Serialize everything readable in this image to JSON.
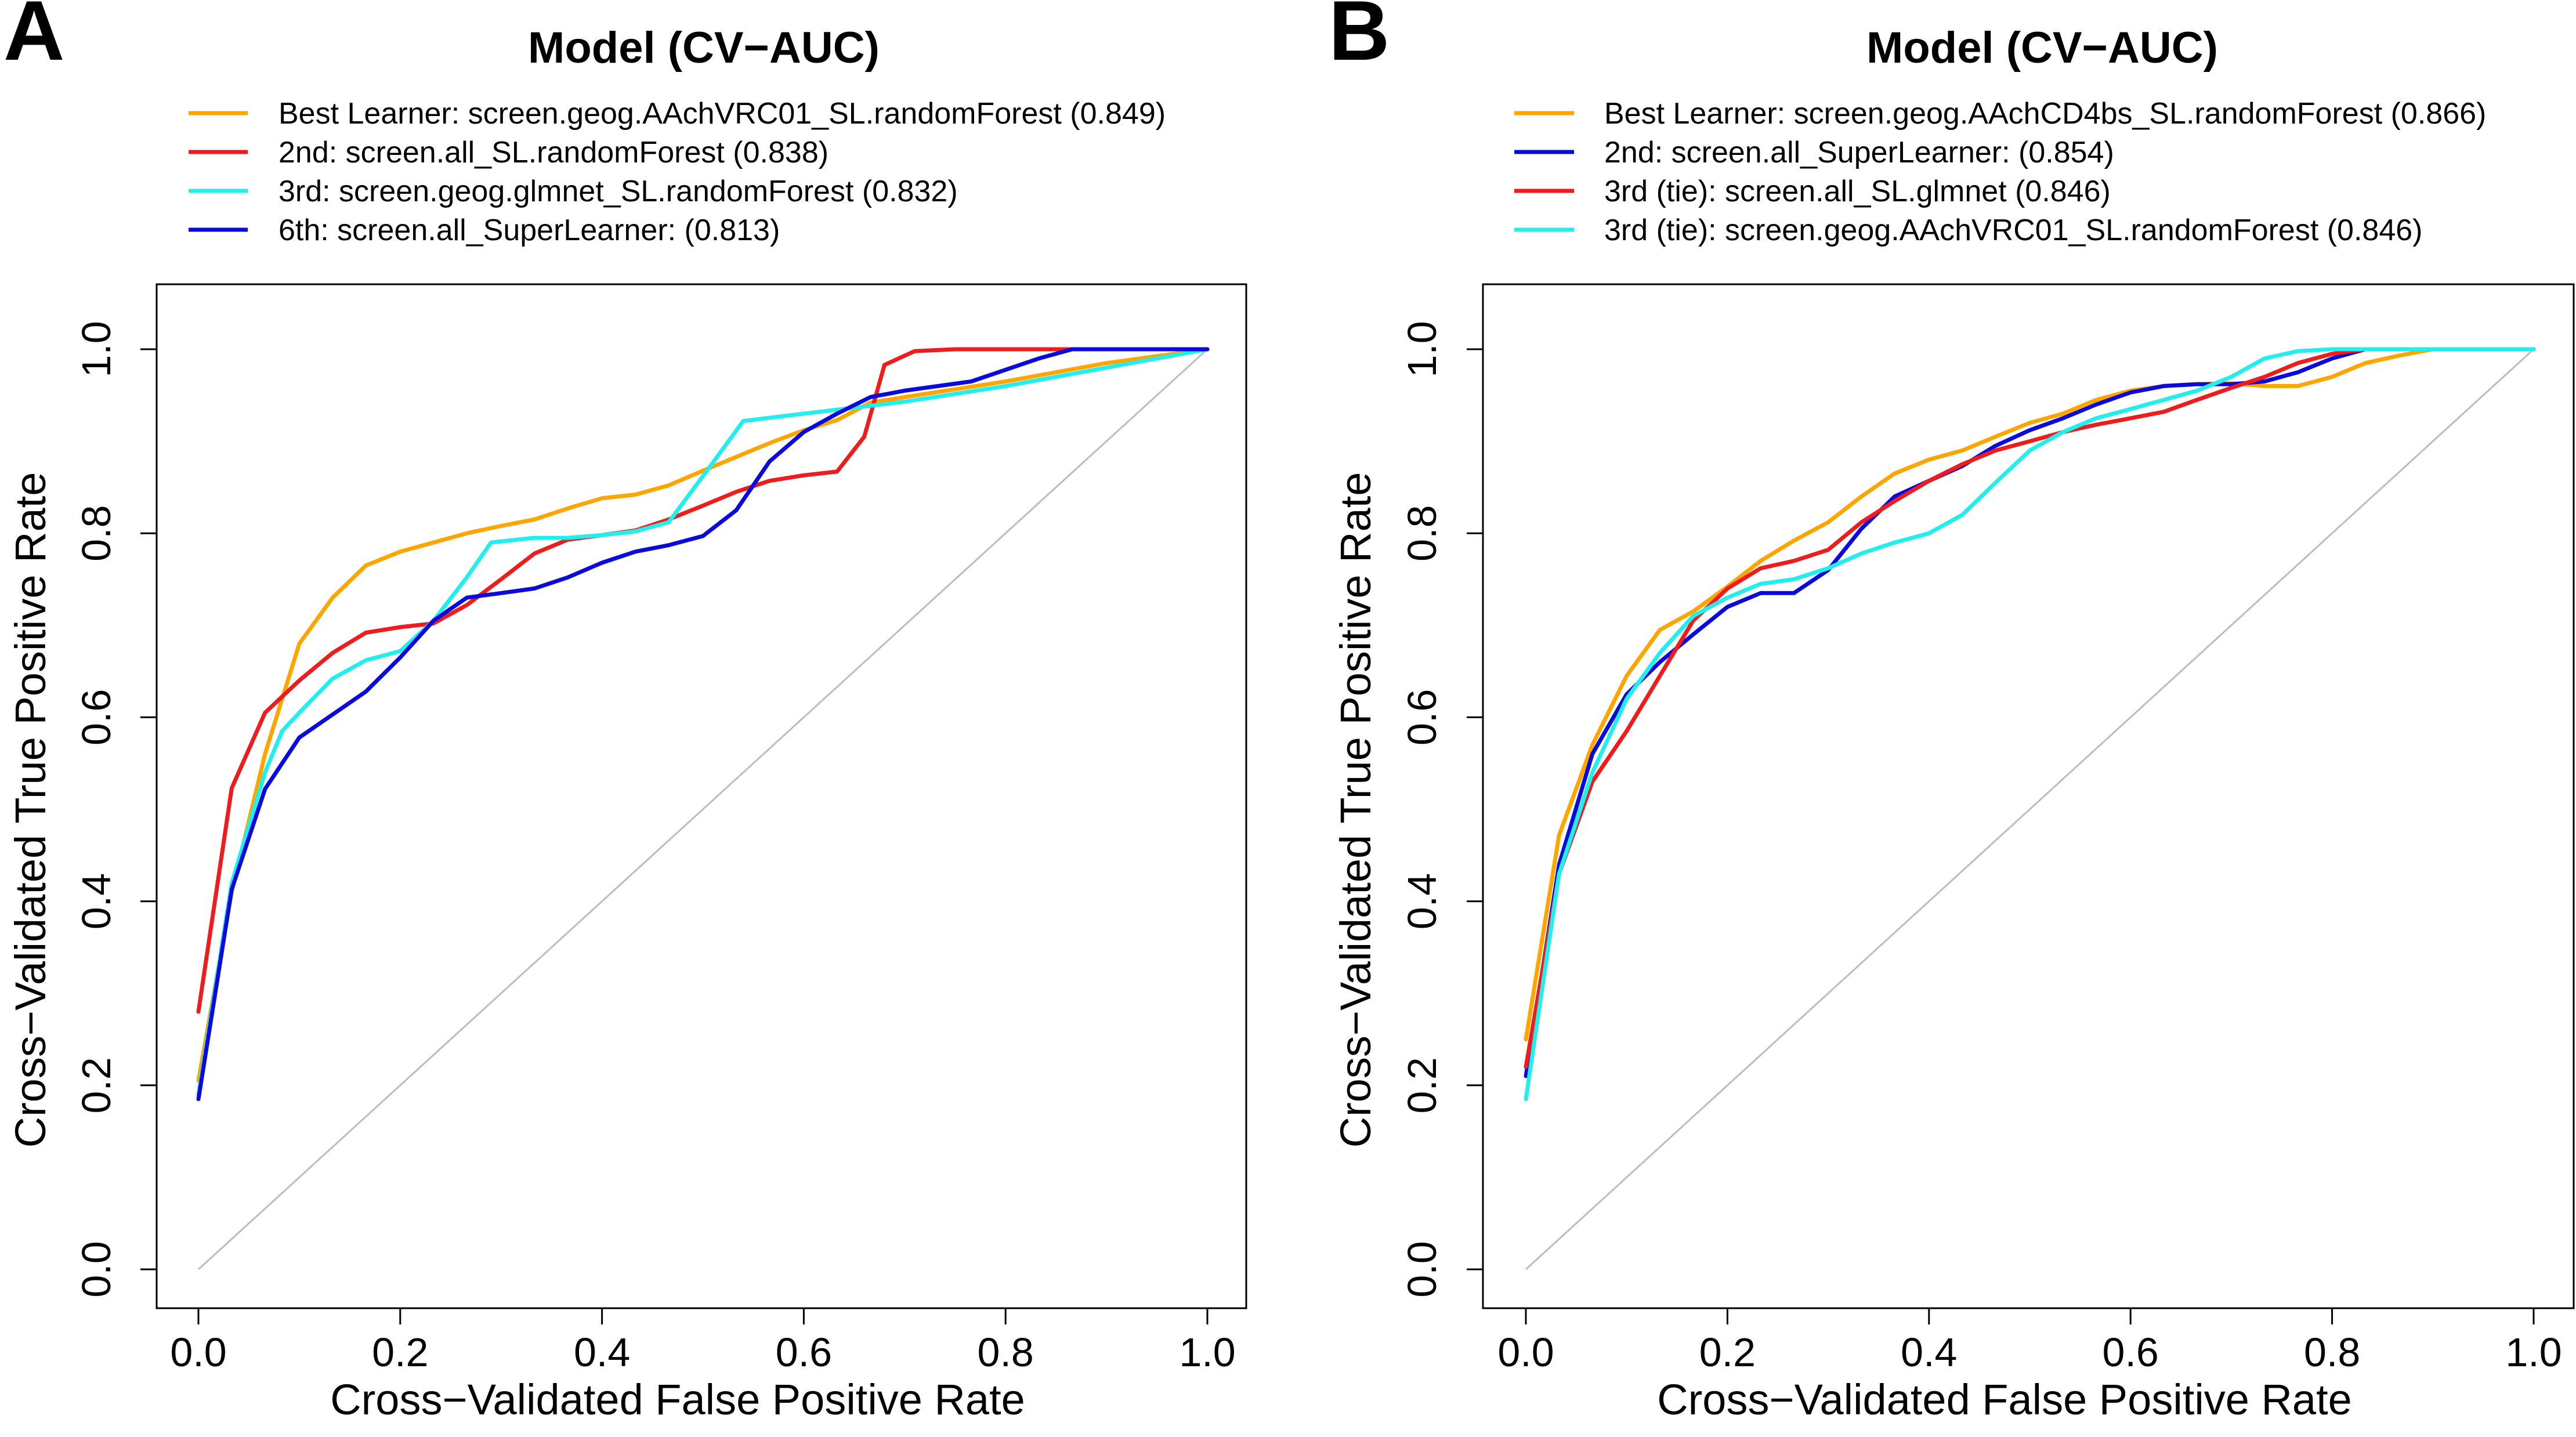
{
  "chart_data": [
    {
      "panel_label": "A",
      "type": "line",
      "title": "Model (CV−AUC)",
      "xlabel": "Cross−Validated False Positive Rate",
      "ylabel": "Cross−Validated True Positive Rate",
      "xlim": [
        0,
        1
      ],
      "ylim": [
        0,
        1
      ],
      "xticks": [
        "0.0",
        "0.2",
        "0.4",
        "0.6",
        "0.8",
        "1.0"
      ],
      "yticks": [
        "0.0",
        "0.2",
        "0.4",
        "0.6",
        "0.8",
        "1.0"
      ],
      "grid": false,
      "legend_position": "top",
      "diagonal_reference": true,
      "series": [
        {
          "name": "Best Learner: screen.geog.AAchVRC01_SL.randomForest (0.849)",
          "color": "#FFA500",
          "x": [
            0.0,
            0.033,
            0.066,
            0.1,
            0.133,
            0.166,
            0.2,
            0.233,
            0.266,
            0.3,
            0.333,
            0.366,
            0.4,
            0.433,
            0.466,
            0.5,
            0.533,
            0.566,
            0.6,
            0.633,
            0.666,
            0.7,
            0.8,
            0.9,
            1.0
          ],
          "y": [
            0.205,
            0.41,
            0.56,
            0.68,
            0.73,
            0.765,
            0.78,
            0.79,
            0.8,
            0.808,
            0.815,
            0.827,
            0.838,
            0.842,
            0.852,
            0.868,
            0.883,
            0.898,
            0.912,
            0.923,
            0.942,
            0.948,
            0.965,
            0.985,
            1.0
          ]
        },
        {
          "name": "2nd: screen.all_SL.randomForest (0.838)",
          "color": "#EE1C1C",
          "x": [
            0.0,
            0.033,
            0.066,
            0.1,
            0.133,
            0.166,
            0.2,
            0.233,
            0.266,
            0.3,
            0.333,
            0.366,
            0.4,
            0.433,
            0.466,
            0.5,
            0.533,
            0.566,
            0.6,
            0.633,
            0.66,
            0.68,
            0.71,
            0.75,
            0.85,
            1.0
          ],
          "y": [
            0.28,
            0.523,
            0.605,
            0.64,
            0.67,
            0.692,
            0.698,
            0.702,
            0.722,
            0.75,
            0.778,
            0.793,
            0.798,
            0.803,
            0.815,
            0.83,
            0.845,
            0.857,
            0.863,
            0.867,
            0.905,
            0.983,
            0.998,
            1.0,
            1.0,
            1.0
          ]
        },
        {
          "name": "3rd: screen.geog.glmnet_SL.randomForest (0.832)",
          "color": "#22EEEE",
          "x": [
            0.0,
            0.033,
            0.066,
            0.083,
            0.1,
            0.133,
            0.166,
            0.2,
            0.233,
            0.266,
            0.29,
            0.333,
            0.366,
            0.4,
            0.433,
            0.466,
            0.5,
            0.54,
            0.6,
            0.7,
            0.8,
            0.9,
            1.0
          ],
          "y": [
            0.19,
            0.42,
            0.54,
            0.585,
            0.605,
            0.642,
            0.662,
            0.672,
            0.705,
            0.752,
            0.79,
            0.795,
            0.795,
            0.798,
            0.802,
            0.812,
            0.862,
            0.922,
            0.93,
            0.943,
            0.96,
            0.98,
            1.0
          ]
        },
        {
          "name": "6th: screen.all_SuperLearner: (0.813)",
          "color": "#0A0ADC",
          "x": [
            0.0,
            0.033,
            0.066,
            0.1,
            0.133,
            0.166,
            0.2,
            0.233,
            0.266,
            0.3,
            0.333,
            0.366,
            0.4,
            0.433,
            0.466,
            0.5,
            0.533,
            0.566,
            0.6,
            0.633,
            0.666,
            0.7,
            0.766,
            0.833,
            0.866,
            1.0
          ],
          "y": [
            0.185,
            0.413,
            0.522,
            0.578,
            0.603,
            0.628,
            0.665,
            0.705,
            0.73,
            0.735,
            0.74,
            0.752,
            0.768,
            0.78,
            0.787,
            0.797,
            0.825,
            0.878,
            0.91,
            0.93,
            0.948,
            0.955,
            0.965,
            0.99,
            1.0,
            1.0
          ]
        }
      ]
    },
    {
      "panel_label": "B",
      "type": "line",
      "title": "Model (CV−AUC)",
      "xlabel": "Cross−Validated False Positive Rate",
      "ylabel": "Cross−Validated True Positive Rate",
      "xlim": [
        0,
        1
      ],
      "ylim": [
        0,
        1
      ],
      "xticks": [
        "0.0",
        "0.2",
        "0.4",
        "0.6",
        "0.8",
        "1.0"
      ],
      "yticks": [
        "0.0",
        "0.2",
        "0.4",
        "0.6",
        "0.8",
        "1.0"
      ],
      "grid": false,
      "legend_position": "top",
      "diagonal_reference": true,
      "series": [
        {
          "name": "Best Learner: screen.geog.AAchCD4bs_SL.randomForest (0.866)",
          "color": "#FFA500",
          "x": [
            0.0,
            0.033,
            0.066,
            0.1,
            0.133,
            0.166,
            0.2,
            0.233,
            0.266,
            0.3,
            0.333,
            0.366,
            0.4,
            0.433,
            0.466,
            0.5,
            0.533,
            0.566,
            0.6,
            0.633,
            0.666,
            0.7,
            0.733,
            0.766,
            0.8,
            0.833,
            0.866,
            0.9,
            1.0
          ],
          "y": [
            0.25,
            0.472,
            0.57,
            0.645,
            0.695,
            0.715,
            0.742,
            0.77,
            0.792,
            0.812,
            0.84,
            0.865,
            0.88,
            0.89,
            0.905,
            0.92,
            0.93,
            0.945,
            0.955,
            0.96,
            0.962,
            0.963,
            0.96,
            0.96,
            0.97,
            0.985,
            0.993,
            1.0,
            1.0
          ]
        },
        {
          "name": "2nd: screen.all_SuperLearner: (0.854)",
          "color": "#0A0ADC",
          "x": [
            0.0,
            0.033,
            0.066,
            0.1,
            0.133,
            0.166,
            0.2,
            0.233,
            0.266,
            0.3,
            0.333,
            0.366,
            0.4,
            0.433,
            0.466,
            0.5,
            0.533,
            0.566,
            0.6,
            0.633,
            0.666,
            0.7,
            0.733,
            0.766,
            0.8,
            0.833,
            0.866,
            1.0
          ],
          "y": [
            0.21,
            0.44,
            0.56,
            0.625,
            0.66,
            0.69,
            0.72,
            0.735,
            0.735,
            0.76,
            0.805,
            0.84,
            0.857,
            0.873,
            0.895,
            0.912,
            0.925,
            0.94,
            0.953,
            0.96,
            0.962,
            0.962,
            0.965,
            0.975,
            0.99,
            1.0,
            1.0,
            1.0
          ]
        },
        {
          "name": "3rd (tie): screen.all_SL.glmnet (0.846)",
          "color": "#EE1C1C",
          "x": [
            0.0,
            0.033,
            0.066,
            0.1,
            0.133,
            0.166,
            0.2,
            0.233,
            0.266,
            0.3,
            0.333,
            0.366,
            0.4,
            0.433,
            0.466,
            0.5,
            0.533,
            0.566,
            0.6,
            0.633,
            0.666,
            0.7,
            0.733,
            0.766,
            0.8,
            0.833,
            1.0
          ],
          "y": [
            0.22,
            0.43,
            0.53,
            0.585,
            0.645,
            0.705,
            0.74,
            0.762,
            0.77,
            0.782,
            0.812,
            0.835,
            0.857,
            0.875,
            0.89,
            0.9,
            0.91,
            0.918,
            0.925,
            0.932,
            0.945,
            0.958,
            0.97,
            0.985,
            0.995,
            1.0,
            1.0
          ]
        },
        {
          "name": "3rd (tie): screen.geog.AAchVRC01_SL.randomForest (0.846)",
          "color": "#22EEEE",
          "x": [
            0.0,
            0.033,
            0.066,
            0.1,
            0.133,
            0.166,
            0.2,
            0.233,
            0.266,
            0.3,
            0.333,
            0.366,
            0.4,
            0.433,
            0.466,
            0.5,
            0.533,
            0.566,
            0.6,
            0.633,
            0.666,
            0.7,
            0.733,
            0.766,
            0.8,
            1.0
          ],
          "y": [
            0.185,
            0.43,
            0.54,
            0.62,
            0.67,
            0.71,
            0.73,
            0.745,
            0.75,
            0.762,
            0.778,
            0.79,
            0.8,
            0.82,
            0.855,
            0.89,
            0.91,
            0.925,
            0.935,
            0.945,
            0.955,
            0.97,
            0.99,
            0.998,
            1.0,
            1.0
          ]
        }
      ]
    }
  ]
}
